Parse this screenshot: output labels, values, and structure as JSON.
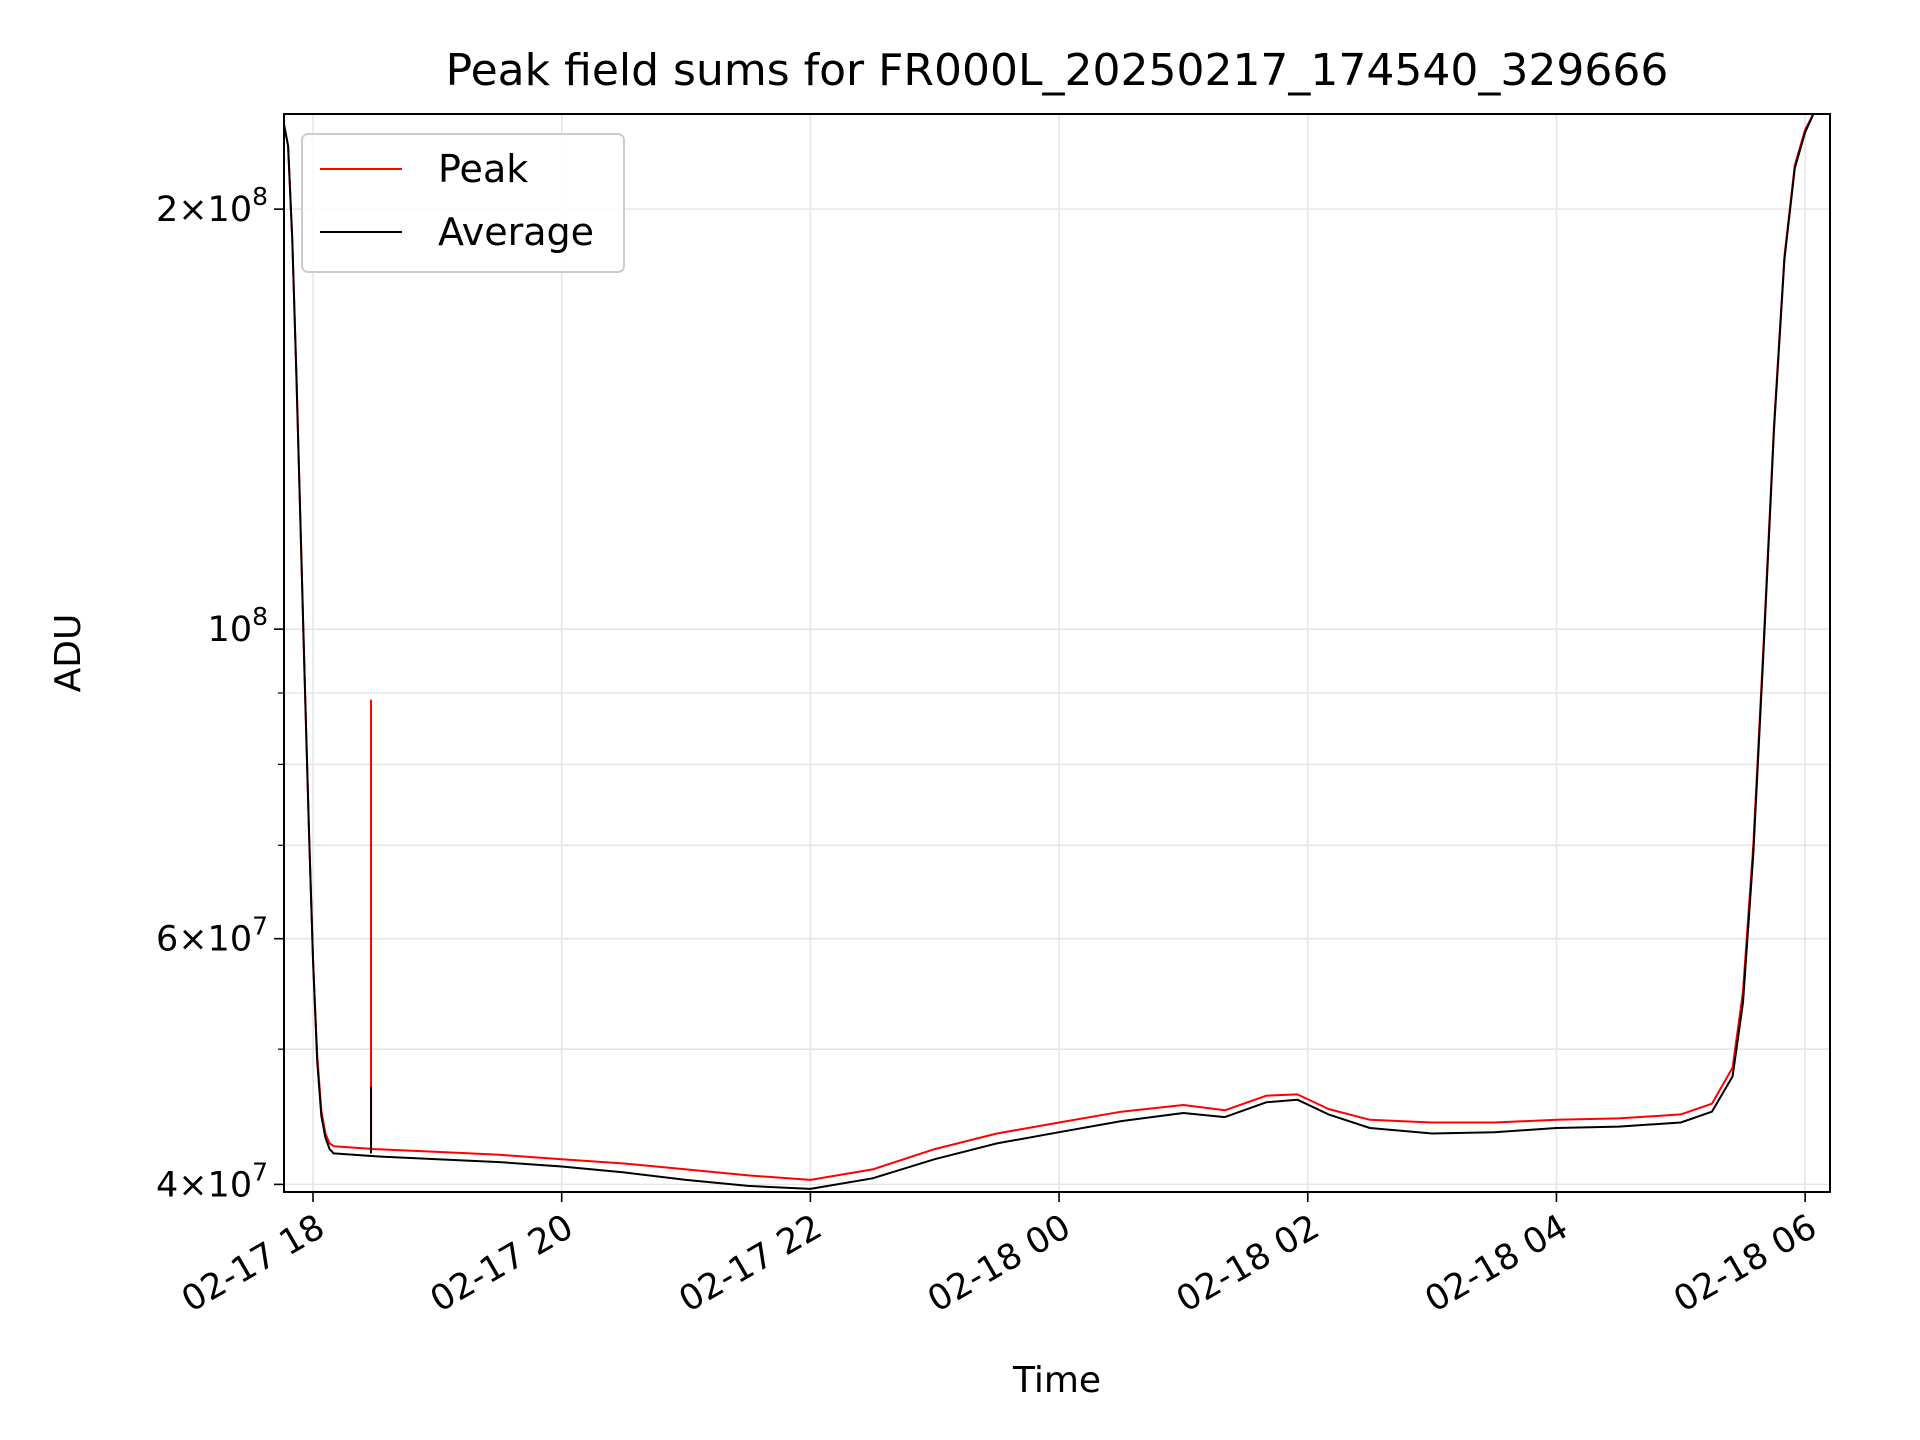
{
  "chart_data": {
    "type": "line",
    "title": "Peak field sums for FR000L_20250217_174540_329666",
    "xlabel": "Time",
    "ylabel": "ADU",
    "yscale": "log",
    "grid": true,
    "legend_placement": "top-left",
    "xlim": [
      "2025-02-17 17:46",
      "2025-02-18 06:12"
    ],
    "ylim": [
      39500000,
      234000000
    ],
    "x_ticks": [
      {
        "value": "2025-02-17 18:00",
        "label": "02-17 18"
      },
      {
        "value": "2025-02-17 20:00",
        "label": "02-17 20"
      },
      {
        "value": "2025-02-17 22:00",
        "label": "02-17 22"
      },
      {
        "value": "2025-02-18 00:00",
        "label": "02-18 00"
      },
      {
        "value": "2025-02-18 02:00",
        "label": "02-18 02"
      },
      {
        "value": "2025-02-18 04:00",
        "label": "02-18 04"
      },
      {
        "value": "2025-02-18 06:00",
        "label": "02-18 06"
      }
    ],
    "y_ticks": [
      {
        "value": 40000000,
        "mantissa": "4",
        "exp": "7"
      },
      {
        "value": 60000000,
        "mantissa": "6",
        "exp": "7"
      },
      {
        "value": 100000000,
        "mantissa": "",
        "exp": "8"
      },
      {
        "value": 200000000,
        "mantissa": "2",
        "exp": "8"
      }
    ],
    "y_minor_ticks": [
      50000000,
      70000000,
      80000000,
      90000000
    ],
    "series": [
      {
        "name": "Peak",
        "color": "#ff0000",
        "points": [
          [
            "2025-02-17 17:46",
            230000000
          ],
          [
            "2025-02-17 17:48",
            222000000
          ],
          [
            "2025-02-17 17:50",
            190000000
          ],
          [
            "2025-02-17 17:52",
            152000000
          ],
          [
            "2025-02-17 17:54",
            118000000
          ],
          [
            "2025-02-17 17:56",
            92000000
          ],
          [
            "2025-02-17 17:58",
            72000000
          ],
          [
            "2025-02-17 18:00",
            58000000
          ],
          [
            "2025-02-17 18:02",
            49500000
          ],
          [
            "2025-02-17 18:04",
            45200000
          ],
          [
            "2025-02-17 18:06",
            43500000
          ],
          [
            "2025-02-17 18:08",
            42800000
          ],
          [
            "2025-02-17 18:10",
            42600000
          ],
          [
            "2025-02-17 18:30",
            42400000
          ],
          [
            "2025-02-17 19:00",
            42200000
          ],
          [
            "2025-02-17 19:30",
            42000000
          ],
          [
            "2025-02-17 20:00",
            41700000
          ],
          [
            "2025-02-17 20:30",
            41400000
          ],
          [
            "2025-02-17 21:00",
            41000000
          ],
          [
            "2025-02-17 21:30",
            40600000
          ],
          [
            "2025-02-17 22:00",
            40300000
          ],
          [
            "2025-02-17 22:30",
            41000000
          ],
          [
            "2025-02-17 23:00",
            42400000
          ],
          [
            "2025-02-17 23:30",
            43500000
          ],
          [
            "2025-02-18 00:00",
            44300000
          ],
          [
            "2025-02-18 00:30",
            45100000
          ],
          [
            "2025-02-18 01:00",
            45600000
          ],
          [
            "2025-02-18 01:20",
            45200000
          ],
          [
            "2025-02-18 01:40",
            46300000
          ],
          [
            "2025-02-18 01:55",
            46400000
          ],
          [
            "2025-02-18 02:10",
            45300000
          ],
          [
            "2025-02-18 02:30",
            44500000
          ],
          [
            "2025-02-18 03:00",
            44300000
          ],
          [
            "2025-02-18 03:30",
            44300000
          ],
          [
            "2025-02-18 04:00",
            44500000
          ],
          [
            "2025-02-18 04:30",
            44600000
          ],
          [
            "2025-02-18 05:00",
            44900000
          ],
          [
            "2025-02-18 05:15",
            45700000
          ],
          [
            "2025-02-18 05:25",
            48500000
          ],
          [
            "2025-02-18 05:30",
            55000000
          ],
          [
            "2025-02-18 05:35",
            70000000
          ],
          [
            "2025-02-18 05:40",
            98000000
          ],
          [
            "2025-02-18 05:45",
            140000000
          ],
          [
            "2025-02-18 05:50",
            185000000
          ],
          [
            "2025-02-18 05:55",
            215000000
          ],
          [
            "2025-02-18 06:00",
            228000000
          ],
          [
            "2025-02-18 06:04",
            234000000
          ],
          [
            "2025-02-18 06:12",
            234000000
          ]
        ],
        "spikes": [
          [
            "2025-02-17 18:28",
            89000000
          ]
        ]
      },
      {
        "name": "Average",
        "color": "#000000",
        "points": [
          [
            "2025-02-17 17:46",
            230000000
          ],
          [
            "2025-02-17 17:48",
            222000000
          ],
          [
            "2025-02-17 17:50",
            190000000
          ],
          [
            "2025-02-17 17:52",
            152000000
          ],
          [
            "2025-02-17 17:54",
            118000000
          ],
          [
            "2025-02-17 17:56",
            92000000
          ],
          [
            "2025-02-17 17:58",
            72000000
          ],
          [
            "2025-02-17 18:00",
            58000000
          ],
          [
            "2025-02-17 18:02",
            49000000
          ],
          [
            "2025-02-17 18:04",
            44800000
          ],
          [
            "2025-02-17 18:06",
            43200000
          ],
          [
            "2025-02-17 18:08",
            42400000
          ],
          [
            "2025-02-17 18:10",
            42100000
          ],
          [
            "2025-02-17 18:30",
            41900000
          ],
          [
            "2025-02-17 19:00",
            41700000
          ],
          [
            "2025-02-17 19:30",
            41500000
          ],
          [
            "2025-02-17 20:00",
            41200000
          ],
          [
            "2025-02-17 20:30",
            40800000
          ],
          [
            "2025-02-17 21:00",
            40300000
          ],
          [
            "2025-02-17 21:30",
            39900000
          ],
          [
            "2025-02-17 22:00",
            39700000
          ],
          [
            "2025-02-17 22:30",
            40400000
          ],
          [
            "2025-02-17 23:00",
            41700000
          ],
          [
            "2025-02-17 23:30",
            42800000
          ],
          [
            "2025-02-18 00:00",
            43600000
          ],
          [
            "2025-02-18 00:30",
            44400000
          ],
          [
            "2025-02-18 01:00",
            45000000
          ],
          [
            "2025-02-18 01:20",
            44700000
          ],
          [
            "2025-02-18 01:40",
            45800000
          ],
          [
            "2025-02-18 01:55",
            46000000
          ],
          [
            "2025-02-18 02:10",
            44900000
          ],
          [
            "2025-02-18 02:30",
            43900000
          ],
          [
            "2025-02-18 03:00",
            43500000
          ],
          [
            "2025-02-18 03:30",
            43600000
          ],
          [
            "2025-02-18 04:00",
            43900000
          ],
          [
            "2025-02-18 04:30",
            44000000
          ],
          [
            "2025-02-18 05:00",
            44300000
          ],
          [
            "2025-02-18 05:15",
            45100000
          ],
          [
            "2025-02-18 05:25",
            47800000
          ],
          [
            "2025-02-18 05:30",
            54000000
          ],
          [
            "2025-02-18 05:35",
            69000000
          ],
          [
            "2025-02-18 05:40",
            97000000
          ],
          [
            "2025-02-18 05:45",
            139000000
          ],
          [
            "2025-02-18 05:50",
            184000000
          ],
          [
            "2025-02-18 05:55",
            214000000
          ],
          [
            "2025-02-18 06:00",
            227000000
          ],
          [
            "2025-02-18 06:04",
            234000000
          ],
          [
            "2025-02-18 06:12",
            234000000
          ]
        ],
        "spikes": [
          [
            "2025-02-17 18:28",
            47000000
          ]
        ]
      }
    ]
  }
}
